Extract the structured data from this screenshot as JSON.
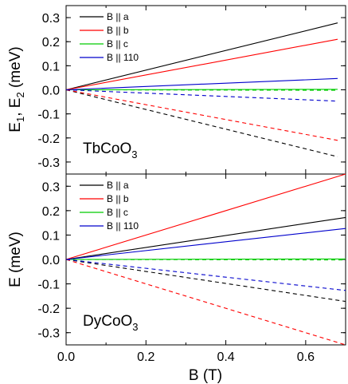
{
  "chart_data": [
    {
      "type": "line",
      "panel": "top",
      "compound_label": "TbCoO",
      "compound_label_sub": "3",
      "ylabel_parts": [
        "E",
        "1",
        ", E",
        "2",
        " (meV)"
      ],
      "xlabel": "",
      "xlim": [
        0.0,
        0.7
      ],
      "ylim": [
        -0.35,
        0.35
      ],
      "yticks": [
        -0.3,
        -0.2,
        -0.1,
        0.0,
        0.1,
        0.2,
        0.3
      ],
      "ytick_labels": [
        "-0.3",
        "-0.2",
        "-0.1",
        "0.0",
        "0.1",
        "0.2",
        "0.3"
      ],
      "legend_position": "top-left",
      "series": [
        {
          "name": "B || a",
          "color": "#000000",
          "x": [
            0.0,
            0.68
          ],
          "y": [
            0.0,
            0.278
          ],
          "lower_y": [
            0.0,
            -0.278
          ]
        },
        {
          "name": "B || b",
          "color": "#ff0000",
          "x": [
            0.0,
            0.68
          ],
          "y": [
            0.0,
            0.21
          ],
          "lower_y": [
            0.0,
            -0.21
          ]
        },
        {
          "name": "B || c",
          "color": "#00cc00",
          "x": [
            0.0,
            0.68
          ],
          "y": [
            0.0,
            0.002
          ],
          "lower_y": [
            0.0,
            -0.002
          ]
        },
        {
          "name": "B || 110",
          "color": "#0000cc",
          "x": [
            0.0,
            0.68
          ],
          "y": [
            0.0,
            0.047
          ],
          "lower_y": [
            0.0,
            -0.047
          ]
        }
      ]
    },
    {
      "type": "line",
      "panel": "bottom",
      "compound_label": "DyCoO",
      "compound_label_sub": "3",
      "ylabel_parts": [
        "E (meV)"
      ],
      "xlabel": "B (T)",
      "xlim": [
        0.0,
        0.7
      ],
      "ylim": [
        -0.35,
        0.35
      ],
      "yticks": [
        -0.3,
        -0.2,
        -0.1,
        0.0,
        0.1,
        0.2,
        0.3
      ],
      "ytick_labels": [
        "-0.3",
        "-0.2",
        "-0.1",
        "0.0",
        "0.1",
        "0.2",
        "0.3"
      ],
      "xticks": [
        0.0,
        0.2,
        0.4,
        0.6
      ],
      "xtick_labels": [
        "0.0",
        "0.2",
        "0.4",
        "0.6"
      ],
      "legend_position": "top-left",
      "series": [
        {
          "name": "B || a",
          "color": "#000000",
          "x": [
            0.0,
            0.7
          ],
          "y": [
            0.0,
            0.172
          ],
          "lower_y": [
            0.0,
            -0.172
          ]
        },
        {
          "name": "B || b",
          "color": "#ff0000",
          "x": [
            0.0,
            0.7
          ],
          "y": [
            0.0,
            0.35
          ],
          "lower_y": [
            0.0,
            -0.35
          ]
        },
        {
          "name": "B || c",
          "color": "#00cc00",
          "x": [
            0.0,
            0.7
          ],
          "y": [
            0.0,
            0.002
          ],
          "lower_y": [
            0.0,
            -0.002
          ]
        },
        {
          "name": "B || 110",
          "color": "#0000cc",
          "x": [
            0.0,
            0.7
          ],
          "y": [
            0.0,
            0.127
          ],
          "lower_y": [
            0.0,
            -0.127
          ]
        }
      ]
    }
  ]
}
